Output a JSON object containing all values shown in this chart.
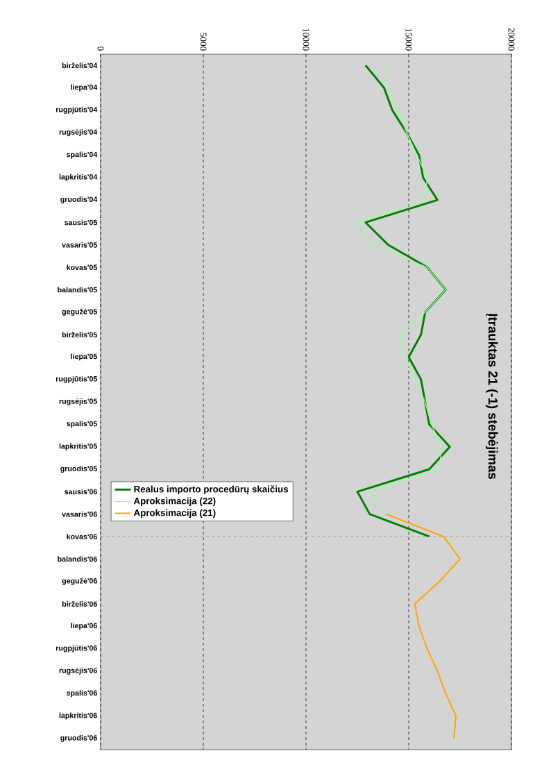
{
  "chart_data": {
    "type": "line",
    "orientation": "horizontal",
    "title": "Įtrauktas 21 (-1) stebėjimas",
    "categories": [
      "birželis'04",
      "liepa'04",
      "rugpjūtis'04",
      "rugsėjis'04",
      "spalis'04",
      "lapkritis'04",
      "gruodis'04",
      "sausis'05",
      "vasaris'05",
      "kovas'05",
      "balandis'05",
      "gegužė'05",
      "birželis'05",
      "liepa'05",
      "rugpjūtis'05",
      "rugsėjis'05",
      "spalis'05",
      "lapkritis'05",
      "gruodis'05",
      "sausis'06",
      "vasaris'06",
      "kovas'06",
      "balandis'06",
      "gegužė'06",
      "birželis'06",
      "liepa'06",
      "rugpjūtis'06",
      "rugsėjis'06",
      "spalis'06",
      "lapkritis'06",
      "gruodis'06"
    ],
    "series": [
      {
        "name": "Realus importo procedūrų skaičius",
        "color": "#008000",
        "values": [
          12900,
          13800,
          14200,
          14900,
          15500,
          15700,
          16400,
          12900,
          14000,
          15900,
          16800,
          15800,
          15600,
          15000,
          15600,
          15800,
          16000,
          17000,
          16000,
          12500,
          13100,
          16000,
          null,
          null,
          null,
          null,
          null,
          null,
          null,
          null,
          null
        ]
      },
      {
        "name": "Aproksimacija  (22)",
        "color": "#99ff99",
        "values": [
          13900,
          14000,
          14500,
          14900,
          15400,
          15900,
          15800,
          12400,
          13200,
          15900,
          16800,
          15800,
          14600,
          14800,
          15300,
          15800,
          16100,
          16600,
          16500,
          13000,
          13900,
          null,
          null,
          null,
          null,
          null,
          null,
          null,
          null,
          null,
          null
        ]
      },
      {
        "name": "Aproksimacija  (21)",
        "color": "#ffa500",
        "values": [
          null,
          null,
          null,
          null,
          null,
          null,
          null,
          null,
          null,
          null,
          null,
          null,
          null,
          null,
          null,
          null,
          null,
          null,
          null,
          null,
          13900,
          16700,
          17500,
          16500,
          15300,
          15500,
          15900,
          16400,
          16800,
          17300,
          17200
        ]
      }
    ],
    "xlim": [
      0,
      20000
    ],
    "xticks": [
      0,
      5000,
      10000,
      15000,
      20000
    ],
    "grid": "x",
    "legend": "left",
    "line_style": "solid",
    "ref_lines": [
      {
        "axis": "y",
        "value": "kovas'06",
        "color": "#808080",
        "line_style": "dashed"
      }
    ]
  }
}
